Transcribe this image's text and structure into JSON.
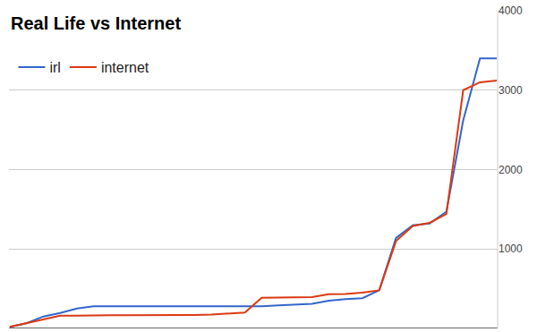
{
  "chart_data": {
    "type": "line",
    "title": "Real Life vs Internet",
    "categories": [
      null,
      null,
      null,
      null,
      null,
      null,
      null,
      null,
      null,
      null,
      null,
      null,
      null,
      null,
      null,
      null,
      null,
      null,
      null,
      null,
      null,
      null,
      null,
      null,
      null,
      null,
      null,
      null,
      null,
      null
    ],
    "series": [
      {
        "name": "irl",
        "color": "#3366cc",
        "values": [
          20,
          65,
          150,
          195,
          250,
          280,
          280,
          280,
          280,
          280,
          280,
          280,
          280,
          280,
          280,
          280,
          290,
          300,
          310,
          350,
          370,
          380,
          480,
          1140,
          1300,
          1320,
          1470,
          2620,
          3400,
          3400
        ]
      },
      {
        "name": "internet",
        "color": "#dc3912",
        "values": [
          20,
          65,
          110,
          160,
          160,
          165,
          165,
          165,
          165,
          165,
          170,
          170,
          175,
          185,
          200,
          385,
          390,
          395,
          395,
          430,
          435,
          450,
          480,
          1100,
          1290,
          1330,
          1440,
          3000,
          3100,
          3120
        ]
      }
    ],
    "ylim": [
      0,
      4000
    ],
    "yticks": [
      1000,
      2000,
      3000,
      4000
    ],
    "grid": true,
    "legend": "top-left",
    "tick_labels": "y"
  }
}
